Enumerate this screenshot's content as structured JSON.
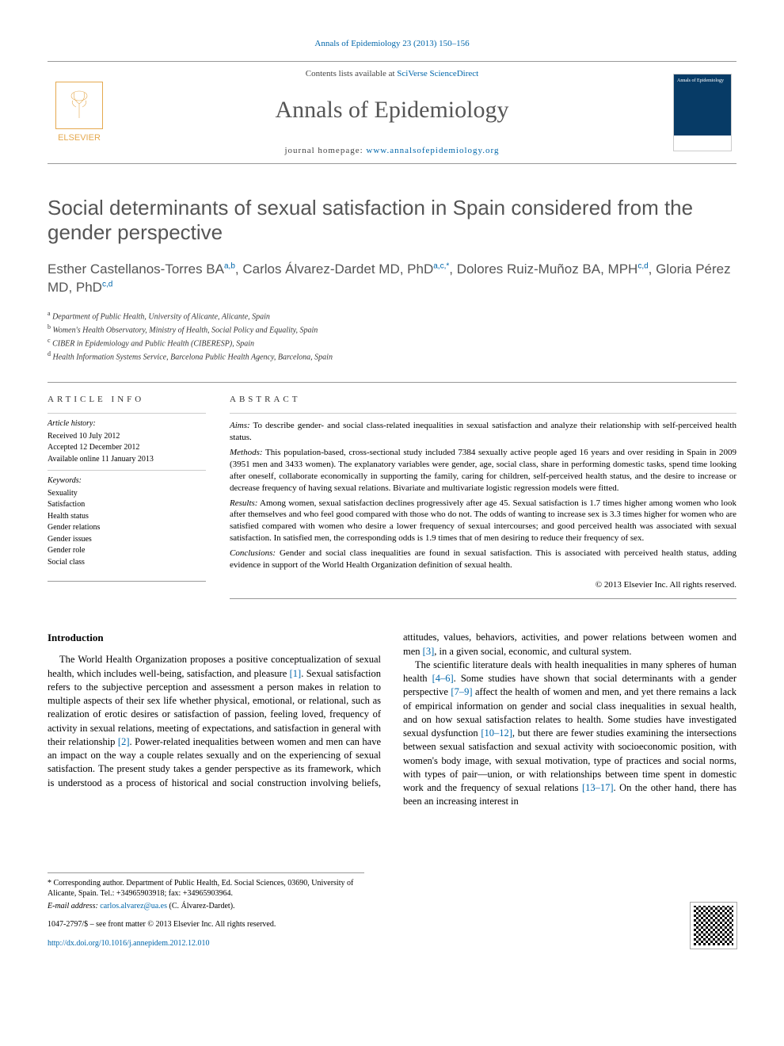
{
  "citation": "Annals of Epidemiology 23 (2013) 150–156",
  "masthead": {
    "publisher": "ELSEVIER",
    "available_prefix": "Contents lists available at ",
    "available_link": "SciVerse ScienceDirect",
    "journal_name": "Annals of Epidemiology",
    "homepage_prefix": "journal homepage: ",
    "homepage_link": "www.annalsofepidemiology.org",
    "cover_small_text": "Annals of Epidemiology"
  },
  "title": "Social determinants of sexual satisfaction in Spain considered from the gender perspective",
  "authors_html": "Esther Castellanos-Torres BA<sup>a,b</sup>, Carlos Álvarez-Dardet MD, PhD<sup>a,c,*</sup>, Dolores Ruiz-Muñoz BA, MPH<sup>c,d</sup>, Gloria Pérez MD, PhD<sup>c,d</sup>",
  "affiliations": [
    "a Department of Public Health, University of Alicante, Alicante, Spain",
    "b Women's Health Observatory, Ministry of Health, Social Policy and Equality, Spain",
    "c CIBER in Epidemiology and Public Health (CIBERESP), Spain",
    "d Health Information Systems Service, Barcelona Public Health Agency, Barcelona, Spain"
  ],
  "article_info": {
    "heading": "ARTICLE INFO",
    "history_label": "Article history:",
    "received": "Received 10 July 2012",
    "accepted": "Accepted 12 December 2012",
    "online": "Available online 11 January 2013",
    "keywords_label": "Keywords:",
    "keywords": [
      "Sexuality",
      "Satisfaction",
      "Health status",
      "Gender relations",
      "Gender issues",
      "Gender role",
      "Social class"
    ]
  },
  "abstract": {
    "heading": "ABSTRACT",
    "aims_label": "Aims:",
    "aims": "To describe gender- and social class-related inequalities in sexual satisfaction and analyze their relationship with self-perceived health status.",
    "methods_label": "Methods:",
    "methods": "This population-based, cross-sectional study included 7384 sexually active people aged 16 years and over residing in Spain in 2009 (3951 men and 3433 women). The explanatory variables were gender, age, social class, share in performing domestic tasks, spend time looking after oneself, collaborate economically in supporting the family, caring for children, self-perceived health status, and the desire to increase or decrease frequency of having sexual relations. Bivariate and multivariate logistic regression models were fitted.",
    "results_label": "Results:",
    "results": "Among women, sexual satisfaction declines progressively after age 45. Sexual satisfaction is 1.7 times higher among women who look after themselves and who feel good compared with those who do not. The odds of wanting to increase sex is 3.3 times higher for women who are satisfied compared with women who desire a lower frequency of sexual intercourses; and good perceived health was associated with sexual satisfaction. In satisfied men, the corresponding odds is 1.9 times that of men desiring to reduce their frequency of sex.",
    "conclusions_label": "Conclusions:",
    "conclusions": "Gender and social class inequalities are found in sexual satisfaction. This is associated with perceived health status, adding evidence in support of the World Health Organization definition of sexual health.",
    "copyright": "© 2013 Elsevier Inc. All rights reserved."
  },
  "intro": {
    "heading": "Introduction",
    "p1_a": "The World Health Organization proposes a positive conceptualization of sexual health, which includes well-being, satisfaction, and pleasure ",
    "r1": "[1]",
    "p1_b": ". Sexual satisfaction refers to the subjective perception and assessment a person makes in relation to multiple aspects of their sex life whether physical, emotional, or relational, such as realization of erotic desires or satisfaction of passion, feeling loved, frequency of activity in sexual relations, meeting of expectations, and satisfaction in general with their relationship ",
    "r2": "[2]",
    "p1_c": ". Power-related inequalities between women and men can have an impact on the way a couple relates sexually and on the experiencing of sexual satisfaction. The present study takes a gender perspective",
    "p2_a": "as its framework, which is understood as a process of historical and social construction involving beliefs, attitudes, values, behaviors, activities, and power relations between women and men ",
    "r3": "[3]",
    "p2_b": ", in a given social, economic, and cultural system.",
    "p3_a": "The scientific literature deals with health inequalities in many spheres of human health ",
    "r46": "[4–6]",
    "p3_b": ". Some studies have shown that social determinants with a gender perspective ",
    "r79": "[7–9]",
    "p3_c": " affect the health of women and men, and yet there remains a lack of empirical information on gender and social class inequalities in sexual health, and on how sexual satisfaction relates to health. Some studies have investigated sexual dysfunction ",
    "r1012": "[10–12]",
    "p3_d": ", but there are fewer studies examining the intersections between sexual satisfaction and sexual activity with socioeconomic position, with women's body image, with sexual motivation, type of practices and social norms, with types of pair—union, or with relationships between time spent in domestic work and the frequency of sexual relations ",
    "r1317": "[13–17]",
    "p3_e": ". On the other hand, there has been an increasing interest in"
  },
  "footnotes": {
    "corr": "* Corresponding author. Department of Public Health, Ed. Social Sciences, 03690, University of Alicante, Spain. Tel.: +34965903918; fax: +34965903964.",
    "email_label": "E-mail address: ",
    "email": "carlos.alvarez@ua.es",
    "email_paren": " (C. Álvarez-Dardet)."
  },
  "bottom": {
    "front_matter": "1047-2797/$ – see front matter © 2013 Elsevier Inc. All rights reserved.",
    "doi": "http://dx.doi.org/10.1016/j.annepidem.2012.12.010"
  },
  "colors": {
    "link": "#0066aa",
    "elsevier_orange": "#e5a94f",
    "heading_gray": "#555555",
    "rule": "#999999"
  }
}
